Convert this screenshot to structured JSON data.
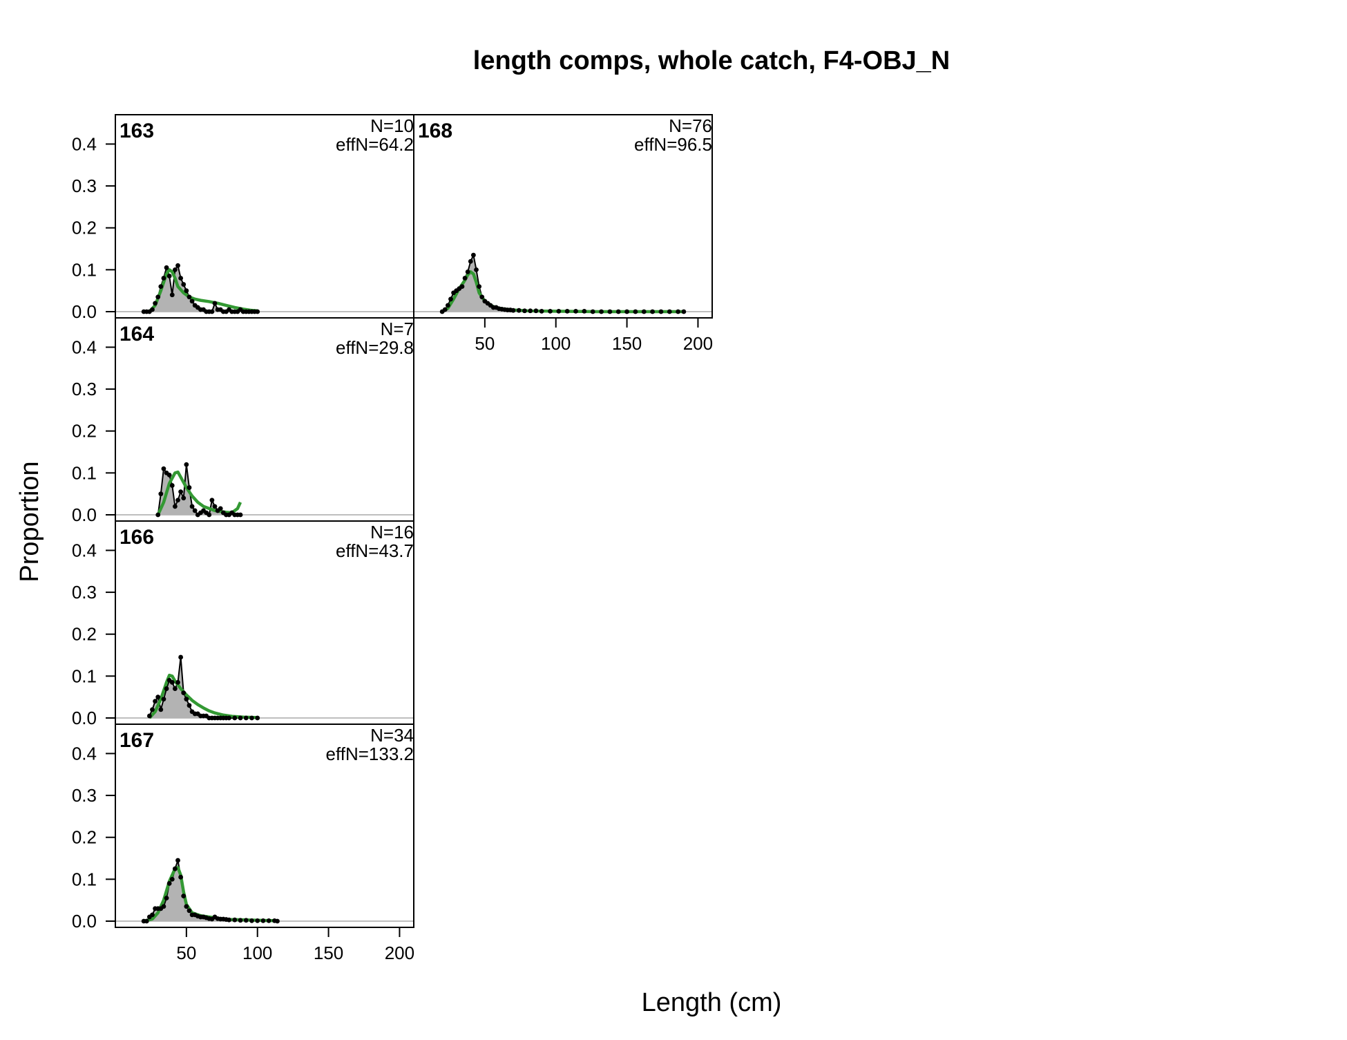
{
  "chart_data": {
    "type": "area",
    "title": "length comps, whole catch, F4-OBJ_N",
    "xlabel": "Length (cm)",
    "ylabel": "Proportion",
    "xlim": [
      0,
      210
    ],
    "ylim": [
      0,
      0.47
    ],
    "x_ticks": [
      50,
      100,
      150,
      200
    ],
    "y_ticks": [
      "0.0",
      "0.1",
      "0.2",
      "0.3",
      "0.4"
    ],
    "colors": {
      "observed_fill": "#b3b3b3",
      "observed_line": "#000000",
      "expected_line": "#339933",
      "zero_line": "#bebebe"
    },
    "series": [
      {
        "name": "observed",
        "style": "grey polygon with black line and points"
      },
      {
        "name": "expected",
        "style": "green line"
      }
    ],
    "panels": [
      {
        "label": "163",
        "n_label": "N=10",
        "effn_label": "effN=64.2",
        "observed": [
          [
            20,
            0.0
          ],
          [
            22,
            0.0
          ],
          [
            24,
            0.0
          ],
          [
            26,
            0.005
          ],
          [
            28,
            0.02
          ],
          [
            30,
            0.035
          ],
          [
            32,
            0.06
          ],
          [
            34,
            0.08
          ],
          [
            36,
            0.105
          ],
          [
            38,
            0.085
          ],
          [
            40,
            0.04
          ],
          [
            42,
            0.1
          ],
          [
            44,
            0.11
          ],
          [
            46,
            0.08
          ],
          [
            48,
            0.065
          ],
          [
            50,
            0.05
          ],
          [
            52,
            0.035
          ],
          [
            54,
            0.025
          ],
          [
            56,
            0.015
          ],
          [
            58,
            0.01
          ],
          [
            60,
            0.005
          ],
          [
            62,
            0.005
          ],
          [
            64,
            0.0
          ],
          [
            66,
            0.0
          ],
          [
            68,
            0.0
          ],
          [
            70,
            0.02
          ],
          [
            72,
            0.005
          ],
          [
            74,
            0.005
          ],
          [
            76,
            0.0
          ],
          [
            78,
            0.0
          ],
          [
            80,
            0.005
          ],
          [
            82,
            0.0
          ],
          [
            84,
            0.0
          ],
          [
            86,
            0.0
          ],
          [
            88,
            0.005
          ],
          [
            90,
            0.0
          ],
          [
            92,
            0.0
          ],
          [
            94,
            0.0
          ],
          [
            96,
            0.0
          ],
          [
            98,
            0.0
          ],
          [
            100,
            0.0
          ]
        ],
        "expected": [
          [
            20,
            0.0
          ],
          [
            24,
            0.0
          ],
          [
            28,
            0.015
          ],
          [
            32,
            0.05
          ],
          [
            36,
            0.09
          ],
          [
            38,
            0.1
          ],
          [
            40,
            0.095
          ],
          [
            42,
            0.08
          ],
          [
            44,
            0.06
          ],
          [
            48,
            0.045
          ],
          [
            52,
            0.035
          ],
          [
            56,
            0.03
          ],
          [
            60,
            0.027
          ],
          [
            66,
            0.024
          ],
          [
            72,
            0.02
          ],
          [
            78,
            0.015
          ],
          [
            84,
            0.01
          ],
          [
            90,
            0.006
          ],
          [
            96,
            0.003
          ],
          [
            100,
            0.002
          ]
        ]
      },
      {
        "label": "164",
        "n_label": "N=7",
        "effn_label": "effN=29.8",
        "observed": [
          [
            30,
            0.0
          ],
          [
            32,
            0.05
          ],
          [
            34,
            0.11
          ],
          [
            36,
            0.1
          ],
          [
            38,
            0.095
          ],
          [
            40,
            0.07
          ],
          [
            42,
            0.02
          ],
          [
            44,
            0.035
          ],
          [
            46,
            0.055
          ],
          [
            48,
            0.04
          ],
          [
            50,
            0.12
          ],
          [
            52,
            0.065
          ],
          [
            54,
            0.02
          ],
          [
            56,
            0.01
          ],
          [
            58,
            0.0
          ],
          [
            60,
            0.005
          ],
          [
            62,
            0.01
          ],
          [
            64,
            0.005
          ],
          [
            66,
            0.0
          ],
          [
            68,
            0.035
          ],
          [
            70,
            0.02
          ],
          [
            72,
            0.01
          ],
          [
            74,
            0.015
          ],
          [
            76,
            0.005
          ],
          [
            78,
            0.0
          ],
          [
            80,
            0.0
          ],
          [
            82,
            0.005
          ],
          [
            84,
            0.0
          ],
          [
            86,
            0.0
          ],
          [
            88,
            0.0
          ]
        ],
        "expected": [
          [
            30,
            0.0
          ],
          [
            34,
            0.03
          ],
          [
            38,
            0.075
          ],
          [
            42,
            0.1
          ],
          [
            44,
            0.102
          ],
          [
            46,
            0.09
          ],
          [
            50,
            0.065
          ],
          [
            54,
            0.045
          ],
          [
            58,
            0.03
          ],
          [
            62,
            0.02
          ],
          [
            66,
            0.015
          ],
          [
            70,
            0.01
          ],
          [
            74,
            0.008
          ],
          [
            78,
            0.006
          ],
          [
            82,
            0.005
          ],
          [
            86,
            0.015
          ],
          [
            88,
            0.03
          ]
        ]
      },
      {
        "label": "166",
        "n_label": "N=16",
        "effn_label": "effN=43.7",
        "observed": [
          [
            24,
            0.005
          ],
          [
            26,
            0.02
          ],
          [
            28,
            0.04
          ],
          [
            30,
            0.05
          ],
          [
            32,
            0.02
          ],
          [
            34,
            0.045
          ],
          [
            36,
            0.07
          ],
          [
            38,
            0.09
          ],
          [
            40,
            0.085
          ],
          [
            42,
            0.07
          ],
          [
            44,
            0.085
          ],
          [
            46,
            0.145
          ],
          [
            48,
            0.06
          ],
          [
            50,
            0.045
          ],
          [
            52,
            0.03
          ],
          [
            54,
            0.015
          ],
          [
            56,
            0.01
          ],
          [
            58,
            0.01
          ],
          [
            60,
            0.005
          ],
          [
            62,
            0.005
          ],
          [
            64,
            0.005
          ],
          [
            66,
            0.0
          ],
          [
            68,
            0.0
          ],
          [
            70,
            0.0
          ],
          [
            72,
            0.0
          ],
          [
            74,
            0.0
          ],
          [
            76,
            0.0
          ],
          [
            78,
            0.0
          ],
          [
            80,
            0.0
          ],
          [
            84,
            0.0
          ],
          [
            88,
            0.0
          ],
          [
            92,
            0.0
          ],
          [
            96,
            0.0
          ],
          [
            100,
            0.0
          ]
        ],
        "expected": [
          [
            24,
            0.0
          ],
          [
            28,
            0.015
          ],
          [
            32,
            0.045
          ],
          [
            36,
            0.085
          ],
          [
            38,
            0.102
          ],
          [
            40,
            0.1
          ],
          [
            42,
            0.088
          ],
          [
            46,
            0.07
          ],
          [
            50,
            0.055
          ],
          [
            54,
            0.042
          ],
          [
            58,
            0.032
          ],
          [
            62,
            0.024
          ],
          [
            66,
            0.017
          ],
          [
            70,
            0.012
          ],
          [
            76,
            0.007
          ],
          [
            82,
            0.004
          ],
          [
            90,
            0.002
          ],
          [
            100,
            0.001
          ]
        ]
      },
      {
        "label": "167",
        "n_label": "N=34",
        "effn_label": "effN=133.2",
        "observed": [
          [
            20,
            0.0
          ],
          [
            22,
            0.0
          ],
          [
            24,
            0.01
          ],
          [
            26,
            0.015
          ],
          [
            28,
            0.03
          ],
          [
            30,
            0.03
          ],
          [
            32,
            0.03
          ],
          [
            34,
            0.035
          ],
          [
            36,
            0.055
          ],
          [
            38,
            0.09
          ],
          [
            40,
            0.1
          ],
          [
            42,
            0.125
          ],
          [
            44,
            0.145
          ],
          [
            46,
            0.105
          ],
          [
            48,
            0.06
          ],
          [
            50,
            0.035
          ],
          [
            52,
            0.025
          ],
          [
            54,
            0.015
          ],
          [
            56,
            0.015
          ],
          [
            58,
            0.012
          ],
          [
            60,
            0.01
          ],
          [
            62,
            0.01
          ],
          [
            64,
            0.008
          ],
          [
            66,
            0.006
          ],
          [
            68,
            0.005
          ],
          [
            70,
            0.01
          ],
          [
            72,
            0.006
          ],
          [
            74,
            0.005
          ],
          [
            76,
            0.005
          ],
          [
            78,
            0.004
          ],
          [
            80,
            0.003
          ],
          [
            84,
            0.003
          ],
          [
            88,
            0.002
          ],
          [
            92,
            0.002
          ],
          [
            96,
            0.001
          ],
          [
            100,
            0.001
          ],
          [
            104,
            0.001
          ],
          [
            108,
            0.001
          ],
          [
            112,
            0.001
          ],
          [
            114,
            0.0
          ]
        ],
        "expected": [
          [
            20,
            0.0
          ],
          [
            26,
            0.005
          ],
          [
            30,
            0.02
          ],
          [
            34,
            0.05
          ],
          [
            38,
            0.095
          ],
          [
            42,
            0.125
          ],
          [
            44,
            0.128
          ],
          [
            46,
            0.11
          ],
          [
            48,
            0.07
          ],
          [
            50,
            0.04
          ],
          [
            54,
            0.02
          ],
          [
            60,
            0.013
          ],
          [
            66,
            0.01
          ],
          [
            72,
            0.007
          ],
          [
            80,
            0.004
          ],
          [
            90,
            0.003
          ],
          [
            100,
            0.002
          ],
          [
            114,
            0.001
          ]
        ]
      },
      {
        "label": "168",
        "n_label": "N=76",
        "effn_label": "effN=96.5",
        "observed": [
          [
            20,
            0.0
          ],
          [
            22,
            0.005
          ],
          [
            24,
            0.015
          ],
          [
            26,
            0.03
          ],
          [
            28,
            0.045
          ],
          [
            30,
            0.05
          ],
          [
            32,
            0.055
          ],
          [
            34,
            0.06
          ],
          [
            36,
            0.08
          ],
          [
            38,
            0.095
          ],
          [
            40,
            0.12
          ],
          [
            42,
            0.135
          ],
          [
            44,
            0.1
          ],
          [
            46,
            0.06
          ],
          [
            48,
            0.035
          ],
          [
            50,
            0.025
          ],
          [
            52,
            0.02
          ],
          [
            54,
            0.015
          ],
          [
            56,
            0.01
          ],
          [
            58,
            0.01
          ],
          [
            60,
            0.007
          ],
          [
            62,
            0.006
          ],
          [
            64,
            0.005
          ],
          [
            66,
            0.004
          ],
          [
            68,
            0.004
          ],
          [
            70,
            0.003
          ],
          [
            74,
            0.003
          ],
          [
            78,
            0.002
          ],
          [
            82,
            0.002
          ],
          [
            86,
            0.002
          ],
          [
            90,
            0.001
          ],
          [
            96,
            0.001
          ],
          [
            102,
            0.001
          ],
          [
            108,
            0.001
          ],
          [
            114,
            0.001
          ],
          [
            120,
            0.001
          ],
          [
            126,
            0.0
          ],
          [
            132,
            0.0
          ],
          [
            138,
            0.0
          ],
          [
            144,
            0.0
          ],
          [
            150,
            0.0
          ],
          [
            156,
            0.0
          ],
          [
            162,
            0.0
          ],
          [
            168,
            0.0
          ],
          [
            174,
            0.0
          ],
          [
            180,
            0.0
          ],
          [
            186,
            0.0
          ],
          [
            190,
            0.0
          ]
        ],
        "expected": [
          [
            20,
            0.0
          ],
          [
            24,
            0.008
          ],
          [
            28,
            0.03
          ],
          [
            32,
            0.055
          ],
          [
            36,
            0.075
          ],
          [
            38,
            0.088
          ],
          [
            40,
            0.095
          ],
          [
            42,
            0.09
          ],
          [
            44,
            0.07
          ],
          [
            46,
            0.045
          ],
          [
            50,
            0.025
          ],
          [
            56,
            0.012
          ],
          [
            62,
            0.007
          ],
          [
            70,
            0.004
          ],
          [
            80,
            0.002
          ],
          [
            100,
            0.001
          ],
          [
            130,
            0.0
          ],
          [
            190,
            0.0
          ]
        ]
      }
    ]
  }
}
